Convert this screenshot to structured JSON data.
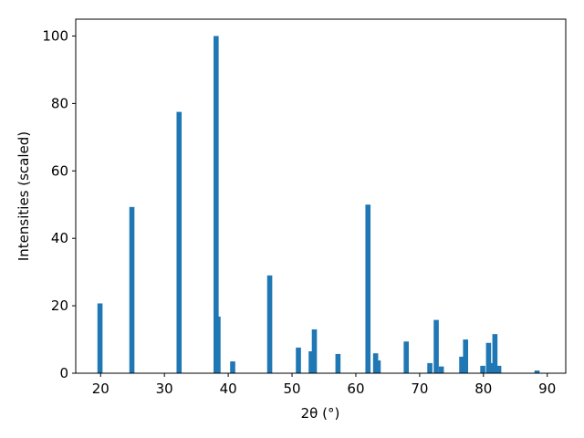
{
  "chart_data": {
    "type": "bar",
    "x_label": "2θ (°)",
    "y_label": "Intensities (scaled)",
    "x": [
      19.9,
      24.9,
      32.3,
      38.1,
      38.4,
      40.7,
      46.5,
      51.0,
      53.0,
      53.5,
      57.2,
      61.9,
      63.1,
      63.5,
      67.9,
      71.6,
      72.6,
      73.4,
      76.6,
      77.2,
      79.9,
      80.8,
      81.1,
      81.8,
      82.4,
      88.4
    ],
    "values": [
      20.7,
      49.3,
      77.5,
      100,
      16.8,
      3.5,
      29,
      7.6,
      6.5,
      13,
      5.7,
      50,
      5.9,
      3.8,
      9.4,
      3,
      15.8,
      2,
      4.9,
      10,
      2.2,
      9,
      3,
      11.6,
      2.2,
      0.8
    ],
    "bar_width": 0.8,
    "color": "#1f77b4",
    "xlim": [
      16.1,
      92.9
    ],
    "xticks": [
      20,
      30,
      40,
      50,
      60,
      70,
      80,
      90
    ],
    "ylim": [
      0,
      105
    ],
    "yticks": [
      0,
      20,
      40,
      60,
      80,
      100
    ]
  }
}
